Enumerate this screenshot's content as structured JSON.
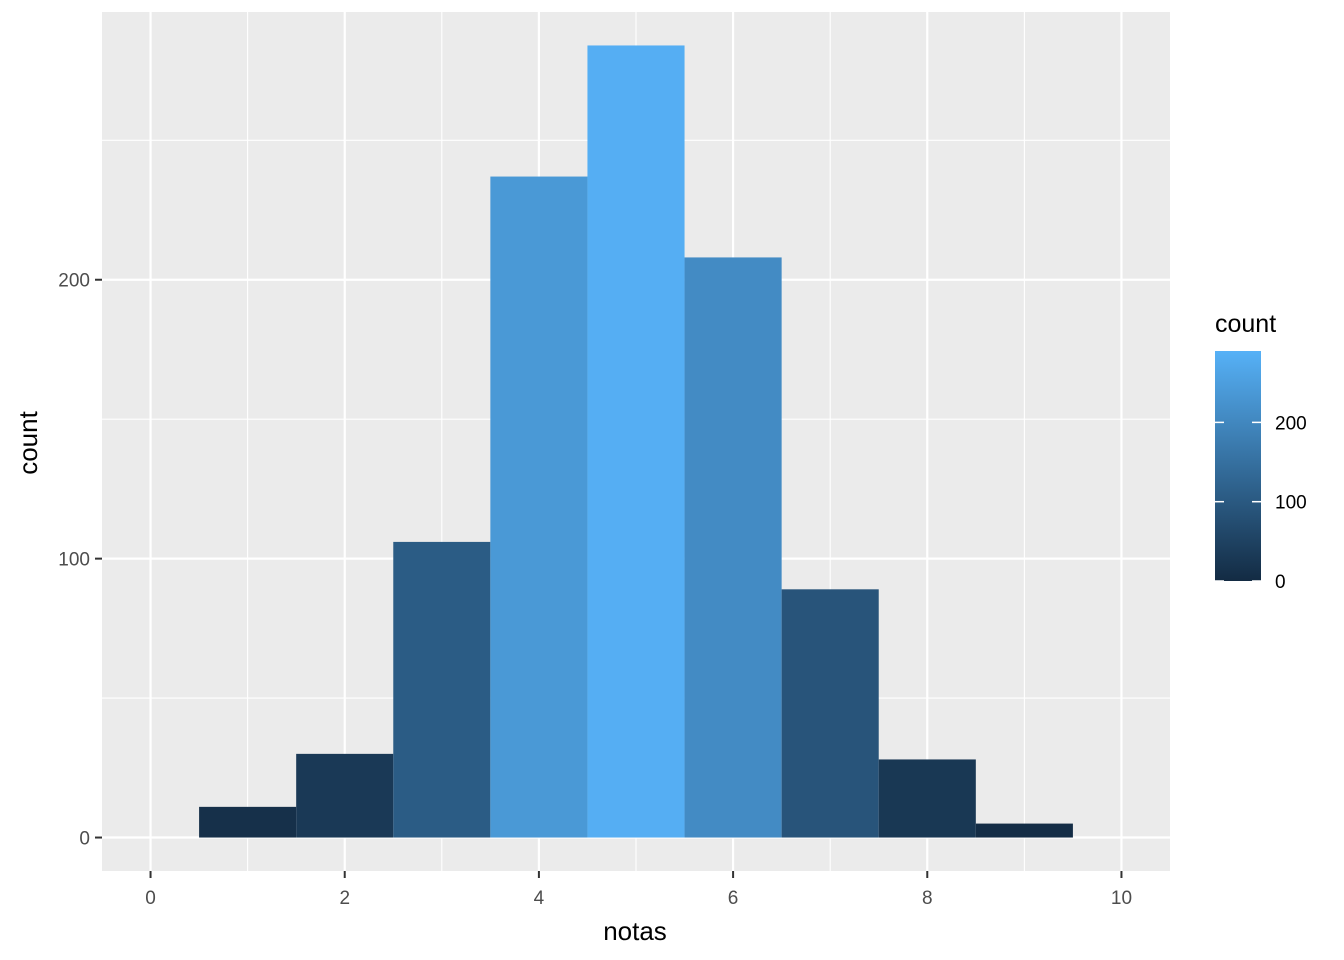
{
  "chart_data": {
    "type": "bar",
    "subtype": "histogram",
    "xlabel": "notas",
    "ylabel": "count",
    "xlim": [
      -0.5,
      10.5
    ],
    "ylim": [
      -12,
      296
    ],
    "x_ticks": [
      0,
      2,
      4,
      6,
      8,
      10
    ],
    "x_tick_labels": [
      "0",
      "2",
      "4",
      "6",
      "8",
      "10"
    ],
    "y_ticks": [
      0,
      100,
      200
    ],
    "y_tick_labels": [
      "0",
      "100",
      "200"
    ],
    "bins": [
      {
        "x": 1,
        "count": 11
      },
      {
        "x": 2,
        "count": 30
      },
      {
        "x": 3,
        "count": 106
      },
      {
        "x": 4,
        "count": 237
      },
      {
        "x": 5,
        "count": 284
      },
      {
        "x": 6,
        "count": 208
      },
      {
        "x": 7,
        "count": 89
      },
      {
        "x": 8,
        "count": 28
      },
      {
        "x": 9,
        "count": 5
      }
    ],
    "bin_width": 1,
    "grid": true,
    "panel_background": "#ebebeb",
    "legend": {
      "title": "count",
      "placement": "right",
      "type": "colorbar",
      "range": [
        0,
        290
      ],
      "breaks": [
        0,
        100,
        200
      ],
      "break_labels": [
        "0",
        "100",
        "200"
      ],
      "low_color": "#132b43",
      "high_color": "#56b1f7"
    }
  }
}
